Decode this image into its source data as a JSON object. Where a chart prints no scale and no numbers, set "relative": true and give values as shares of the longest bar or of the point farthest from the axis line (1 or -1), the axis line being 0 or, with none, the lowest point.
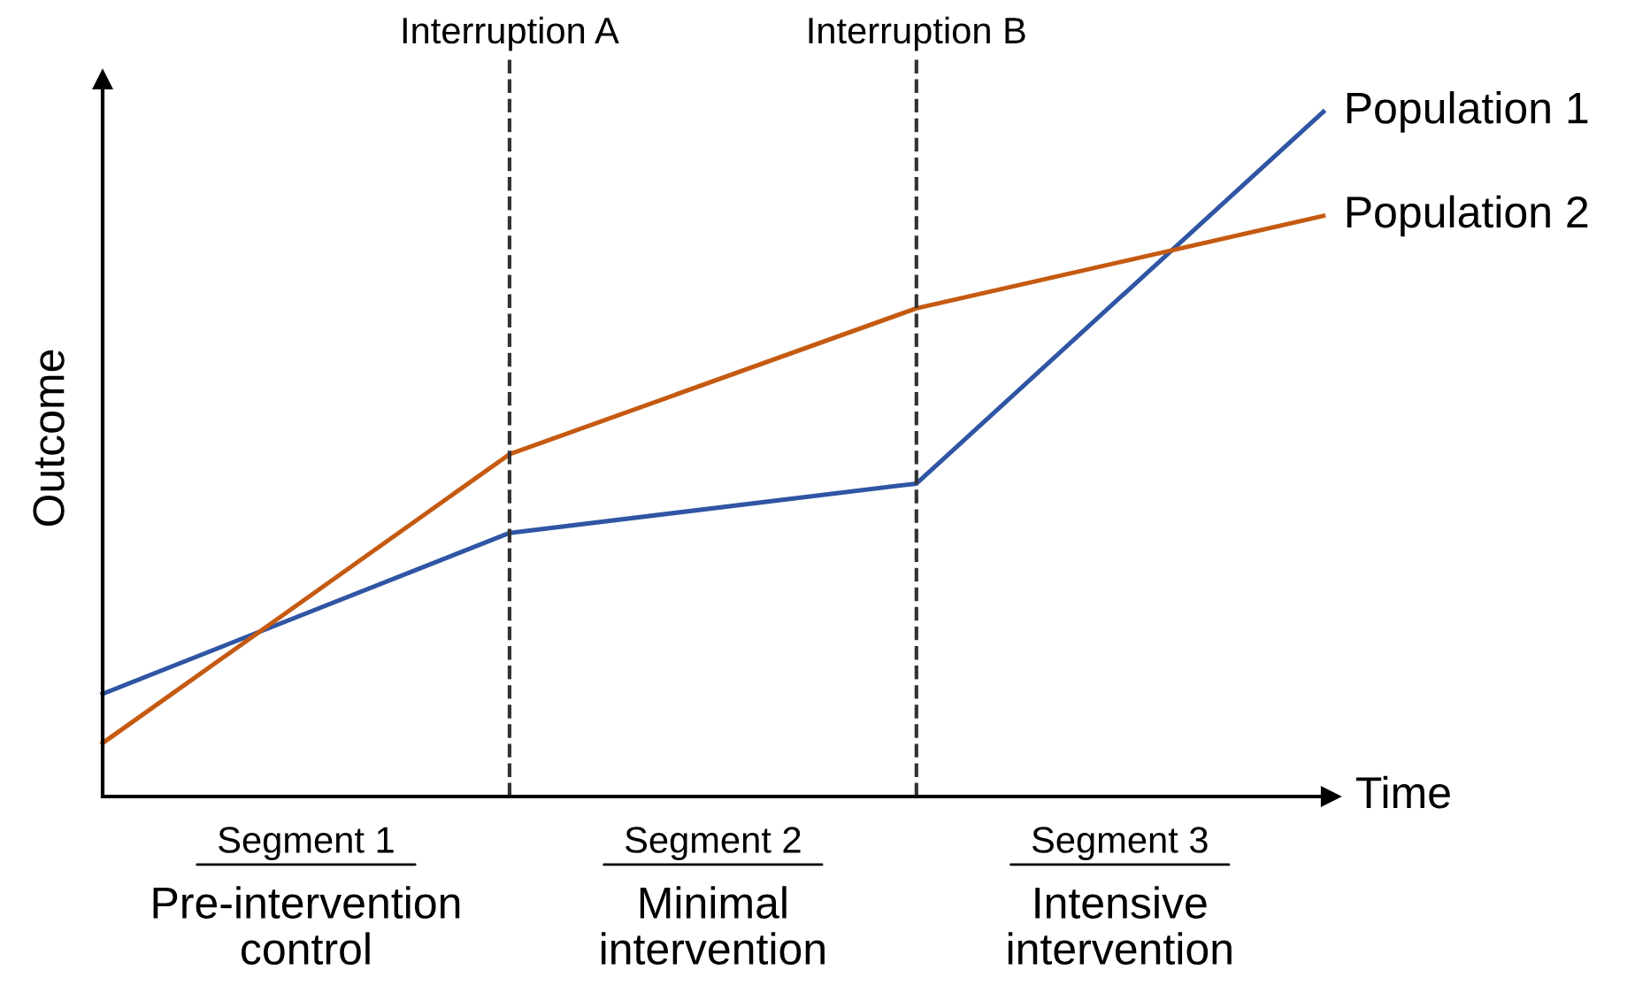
{
  "chart_data": {
    "type": "line",
    "relative": true,
    "categories": [
      null,
      null,
      null,
      null
    ],
    "xlabel": "Time",
    "ylabel": "Outcome",
    "series": [
      {
        "name": "Population 1",
        "color": "#2f55a4",
        "values": [
          0.15,
          0.385,
          0.457,
          1
        ]
      },
      {
        "name": "Population 2",
        "color": "#c55a11",
        "values": [
          0.078,
          0.5,
          0.713,
          0.848
        ]
      }
    ],
    "annotations": [
      "Interruption A",
      "Interruption B",
      "Segment 1",
      "Pre-intervention\ncontrol",
      "Segment 2",
      "Minimal\nintervention",
      "Segment 3",
      "Intensive\nintervention"
    ],
    "legend": false,
    "marker": "none",
    "line_style": "solid"
  }
}
